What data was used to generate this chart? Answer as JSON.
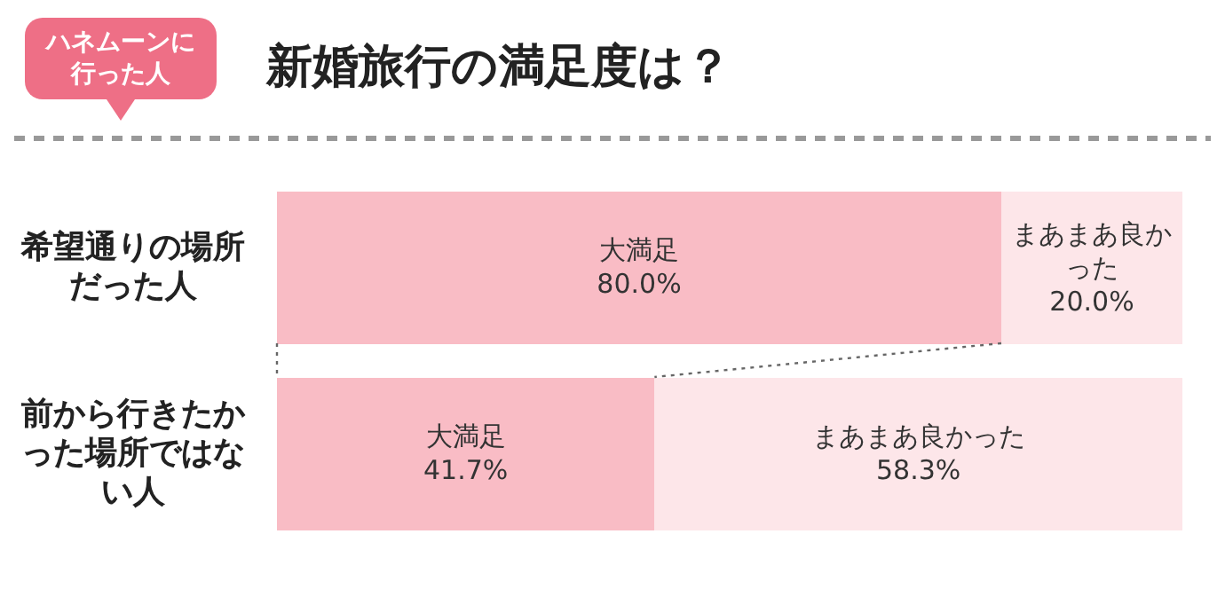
{
  "chart_data": {
    "type": "bar",
    "orientation": "horizontal",
    "stacked": true,
    "title": "新婚旅行の満足度は？",
    "subtitle": "ハネムーンに行った人",
    "categories": [
      "希望通りの場所だった人",
      "前から行きたかった場所ではない人"
    ],
    "series": [
      {
        "name": "大満足",
        "color": "#f9bcc5",
        "values": [
          80.0,
          41.7
        ],
        "value_labels": [
          "80.0%",
          "41.7%"
        ]
      },
      {
        "name": "まあまあ良かった",
        "color": "#fde6e9",
        "values": [
          20.0,
          58.3
        ],
        "value_labels": [
          "20.0%",
          "58.3%"
        ]
      }
    ],
    "legend": false,
    "grid": false
  }
}
